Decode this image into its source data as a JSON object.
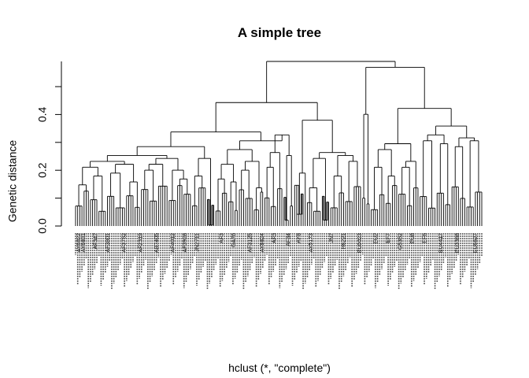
{
  "title": "A simple tree",
  "ylabel": "Genetic distance",
  "xlabel": "hclust (*, \"complete\")",
  "y_ticks": [
    "0.0",
    "0.2",
    "0.4"
  ],
  "y_range": [
    0,
    0.56
  ],
  "dendrogram": {
    "h": 0.56,
    "c": [
      {
        "h": 0.42,
        "c": [
          {
            "h": 0.32,
            "c": [
              {
                "h": 0.27,
                "c": [
                  {
                    "h": 0.24,
                    "c": [
                      {
                        "h": 0.22,
                        "c": [
                          {
                            "h": 0.2,
                            "c": [
                              {
                                "h": 0.14,
                                "c": [
                                  {
                                    "n": 4
                                  },
                                  {
                                    "n": 3
                                  }
                                ]
                              },
                              {
                                "h": 0.17,
                                "c": [
                                  {
                                    "n": 4
                                  },
                                  {
                                    "n": 4
                                  }
                                ]
                              }
                            ]
                          },
                          {
                            "h": 0.21,
                            "c": [
                              {
                                "h": 0.18,
                                "c": [
                                  {
                                    "n": 4
                                  },
                                  {
                                    "n": 5
                                  }
                                ]
                              },
                              {
                                "h": 0.15,
                                "c": [
                                  {
                                    "n": 4
                                  },
                                  {
                                    "n": 3
                                  }
                                ]
                              }
                            ]
                          }
                        ]
                      },
                      {
                        "h": 0.23,
                        "c": [
                          {
                            "h": 0.21,
                            "c": [
                              {
                                "h": 0.19,
                                "c": [
                                  {
                                    "n": 4
                                  },
                                  {
                                    "n": 4
                                  }
                                ]
                              },
                              {
                                "n": 5
                              }
                            ]
                          },
                          {
                            "h": 0.19,
                            "c": [
                              {
                                "n": 4
                              },
                              {
                                "h": 0.16,
                                "c": [
                                  {
                                    "n": 3
                                  },
                                  {
                                    "n": 4
                                  }
                                ]
                              }
                            ]
                          }
                        ]
                      }
                    ]
                  },
                  {
                    "h": 0.23,
                    "c": [
                      {
                        "h": 0.17,
                        "c": [
                          {
                            "n": 3
                          },
                          {
                            "n": 4
                          }
                        ]
                      },
                      {
                        "h": 0.003,
                        "c": [
                          {
                            "n": 2
                          },
                          {
                            "n": 2
                          }
                        ]
                      }
                    ]
                  }
                ]
              },
              {
                "h": 0.29,
                "c": [
                  {
                    "h": 0.26,
                    "c": [
                      {
                        "h": 0.21,
                        "c": [
                          {
                            "h": 0.16,
                            "c": [
                              {
                                "n": 3
                              },
                              {
                                "n": 3
                              }
                            ]
                          },
                          {
                            "h": 0.15,
                            "c": [
                              {
                                "n": 3
                              },
                              {
                                "n": 2
                              }
                            ]
                          }
                        ]
                      },
                      {
                        "h": 0.22,
                        "c": [
                          {
                            "h": 0.19,
                            "c": [
                              {
                                "n": 3
                              },
                              {
                                "n": 4
                              }
                            ]
                          },
                          {
                            "h": 0.13,
                            "c": [
                              {
                                "n": 3
                              },
                              {
                                "n": 2
                              }
                            ]
                          }
                        ]
                      }
                    ]
                  },
                  {
                    "h": 0.31,
                    "c": [
                      {
                        "h": 0.25,
                        "c": [
                          {
                            "h": 0.2,
                            "c": [
                              {
                                "n": 3
                              },
                              {
                                "n": 3
                              }
                            ]
                          },
                          {
                            "n": 3
                          }
                        ]
                      },
                      {
                        "h": 0.24,
                        "c": [
                          {
                            "h": 0.02,
                            "c": [
                              {
                                "n": 2
                              },
                              {
                                "n": 1
                              }
                            ]
                          },
                          {
                            "n": 2
                          }
                        ]
                      }
                    ]
                  }
                ]
              }
            ]
          },
          {
            "h": 0.36,
            "c": [
              {
                "h": 0.18,
                "c": [
                  {
                    "h": 0.04,
                    "c": [
                      {
                        "n": 3
                      },
                      {
                        "n": 2
                      }
                    ]
                  },
                  {
                    "n": 1
                  }
                ]
              },
              {
                "h": 0.25,
                "c": [
                  {
                    "h": 0.23,
                    "c": [
                      {
                        "h": 0.13,
                        "c": [
                          {
                            "n": 3
                          },
                          {
                            "n": 4
                          }
                        ]
                      },
                      {
                        "h": 0.02,
                        "c": [
                          {
                            "n": 2
                          },
                          {
                            "n": 2
                          }
                        ]
                      }
                    ]
                  },
                  {
                    "h": 0.24,
                    "c": [
                      {
                        "h": 0.17,
                        "c": [
                          {
                            "n": 4
                          },
                          {
                            "n": 3
                          }
                        ]
                      },
                      {
                        "h": 0.22,
                        "c": [
                          {
                            "n": 4
                          },
                          {
                            "n": 4
                          }
                        ]
                      }
                    ]
                  }
                ]
              }
            ]
          }
        ]
      },
      {
        "h": 0.54,
        "c": [
          {
            "h": 0.38,
            "c": [
              {
                "n": 2
              },
              {
                "n": 2
              }
            ]
          },
          {
            "h": 0.4,
            "c": [
              {
                "h": 0.28,
                "c": [
                  {
                    "h": 0.26,
                    "c": [
                      {
                        "h": 0.2,
                        "c": [
                          {
                            "n": 4
                          },
                          {
                            "n": 3
                          }
                        ]
                      },
                      {
                        "h": 0.17,
                        "c": [
                          {
                            "n": 3
                          },
                          {
                            "n": 3
                          }
                        ]
                      }
                    ]
                  },
                  {
                    "h": 0.22,
                    "c": [
                      {
                        "h": 0.2,
                        "c": [
                          {
                            "n": 4
                          },
                          {
                            "n": 3
                          }
                        ]
                      },
                      {
                        "n": 3
                      }
                    ]
                  }
                ]
              },
              {
                "h": 0.34,
                "c": [
                  {
                    "h": 0.31,
                    "c": [
                      {
                        "h": 0.29,
                        "c": [
                          {
                            "n": 4
                          },
                          {
                            "n": 4
                          }
                        ]
                      },
                      {
                        "h": 0.28,
                        "c": [
                          {
                            "n": 4
                          },
                          {
                            "n": 3
                          }
                        ]
                      }
                    ]
                  },
                  {
                    "h": 0.3,
                    "c": [
                      {
                        "h": 0.27,
                        "c": [
                          {
                            "n": 4
                          },
                          {
                            "n": 3
                          }
                        ]
                      },
                      {
                        "h": 0.29,
                        "c": [
                          {
                            "n": 4
                          },
                          {
                            "n": 4
                          }
                        ]
                      }
                    ]
                  }
                ]
              }
            ]
          }
        ]
      }
    ]
  },
  "leaf_labels": [
    {
      "text": "AY6822",
      "at": 0.008
    },
    {
      "text": "AY6831",
      "at": 0.02
    },
    {
      "text": "AF347",
      "at": 0.05
    },
    {
      "text": "AF3801",
      "at": 0.08
    },
    {
      "text": "AF3752",
      "at": 0.12
    },
    {
      "text": "AF2319",
      "at": 0.16
    },
    {
      "text": "AB7405",
      "at": 0.2
    },
    {
      "text": "AF4012",
      "at": 0.24
    },
    {
      "text": "AF3928",
      "at": 0.27
    },
    {
      "text": "JN2711",
      "at": 0.3
    },
    {
      "text": "AF3",
      "at": 0.36
    },
    {
      "text": "GA76",
      "at": 0.39
    },
    {
      "text": "AF3125",
      "at": 0.43
    },
    {
      "text": "AY8824",
      "at": 0.46
    },
    {
      "text": "AF3",
      "at": 0.49
    },
    {
      "text": "AF34",
      "at": 0.525
    },
    {
      "text": "AY8",
      "at": 0.55
    },
    {
      "text": "AY5173",
      "at": 0.58
    },
    {
      "text": "JN7",
      "at": 0.63
    },
    {
      "text": "H6221",
      "at": 0.66
    },
    {
      "text": "EU0023",
      "at": 0.7
    },
    {
      "text": "EU2",
      "at": 0.74
    },
    {
      "text": "EF7",
      "at": 0.77
    },
    {
      "text": "G5352",
      "at": 0.8
    },
    {
      "text": "EU8",
      "at": 0.83
    },
    {
      "text": "EF6",
      "at": 0.86
    },
    {
      "text": "EU4417",
      "at": 0.9
    },
    {
      "text": "EU3388",
      "at": 0.94
    },
    {
      "text": "EU6627",
      "at": 0.985
    }
  ]
}
